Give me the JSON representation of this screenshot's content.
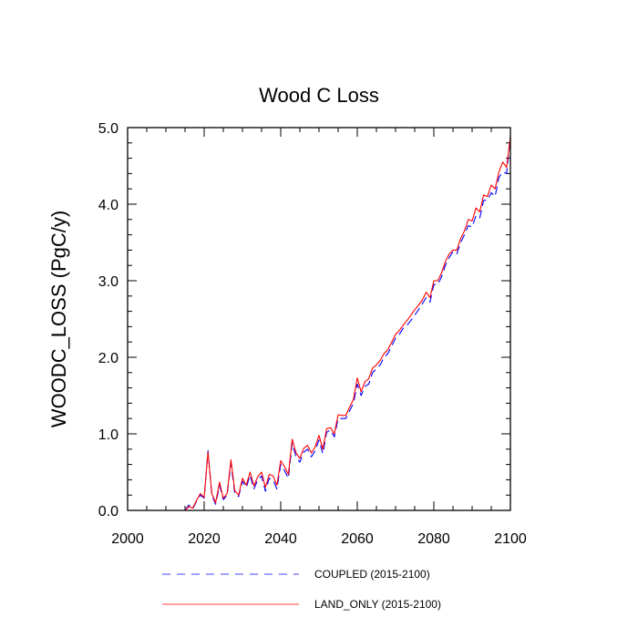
{
  "chart_data": {
    "type": "line",
    "title": "Wood C Loss",
    "xlabel": "",
    "ylabel": "WOODC_LOSS  (PgC/y)",
    "xlim": [
      2000,
      2100
    ],
    "ylim": [
      0.0,
      5.0
    ],
    "xticks": [
      2000,
      2020,
      2040,
      2060,
      2080,
      2100
    ],
    "xtick_labels": [
      "2000",
      "2020",
      "2040",
      "2060",
      "2080",
      "2100"
    ],
    "yticks": [
      0.0,
      1.0,
      2.0,
      3.0,
      4.0,
      5.0
    ],
    "ytick_labels": [
      "0.0",
      "1.0",
      "2.0",
      "3.0",
      "4.0",
      "5.0"
    ],
    "x": [
      2015,
      2016,
      2017,
      2018,
      2019,
      2020,
      2021,
      2022,
      2023,
      2024,
      2025,
      2026,
      2027,
      2028,
      2029,
      2030,
      2031,
      2032,
      2033,
      2034,
      2035,
      2036,
      2037,
      2038,
      2039,
      2040,
      2041,
      2042,
      2043,
      2044,
      2045,
      2046,
      2047,
      2048,
      2049,
      2050,
      2051,
      2052,
      2053,
      2054,
      2055,
      2056,
      2057,
      2058,
      2059,
      2060,
      2061,
      2062,
      2063,
      2064,
      2065,
      2066,
      2067,
      2068,
      2069,
      2070,
      2071,
      2072,
      2073,
      2074,
      2075,
      2076,
      2077,
      2078,
      2079,
      2080,
      2081,
      2082,
      2083,
      2084,
      2085,
      2086,
      2087,
      2088,
      2089,
      2090,
      2091,
      2092,
      2093,
      2094,
      2095,
      2096,
      2097,
      2098,
      2099,
      2100
    ],
    "series": [
      {
        "name": "COUPLED (2015-2100)",
        "color": "#0000ff",
        "style": "dashed",
        "values": [
          0.0,
          0.07,
          0.02,
          0.12,
          0.2,
          0.16,
          0.78,
          0.2,
          0.08,
          0.33,
          0.14,
          0.2,
          0.62,
          0.22,
          0.18,
          0.38,
          0.3,
          0.46,
          0.28,
          0.4,
          0.45,
          0.25,
          0.42,
          0.4,
          0.28,
          0.6,
          0.52,
          0.42,
          0.88,
          0.7,
          0.63,
          0.76,
          0.8,
          0.7,
          0.78,
          0.92,
          0.74,
          1.02,
          1.05,
          0.96,
          1.2,
          1.2,
          1.2,
          1.3,
          1.4,
          1.65,
          1.5,
          1.62,
          1.65,
          1.8,
          1.85,
          1.9,
          2.0,
          2.05,
          2.15,
          2.25,
          2.3,
          2.38,
          2.42,
          2.48,
          2.55,
          2.62,
          2.7,
          2.78,
          2.72,
          2.95,
          2.95,
          3.05,
          3.2,
          3.3,
          3.38,
          3.35,
          3.5,
          3.6,
          3.72,
          3.7,
          3.85,
          3.82,
          4.05,
          4.05,
          4.15,
          4.1,
          4.35,
          4.42,
          4.4,
          4.88
        ]
      },
      {
        "name": "LAND_ONLY (2015-2100)",
        "color": "#ff0000",
        "style": "solid",
        "values": [
          0.0,
          0.05,
          0.03,
          0.13,
          0.22,
          0.17,
          0.76,
          0.22,
          0.1,
          0.37,
          0.16,
          0.22,
          0.66,
          0.26,
          0.2,
          0.42,
          0.33,
          0.5,
          0.32,
          0.44,
          0.5,
          0.3,
          0.47,
          0.45,
          0.33,
          0.65,
          0.57,
          0.47,
          0.93,
          0.75,
          0.68,
          0.81,
          0.85,
          0.75,
          0.83,
          0.98,
          0.8,
          1.07,
          1.08,
          1.0,
          1.25,
          1.24,
          1.24,
          1.35,
          1.45,
          1.73,
          1.55,
          1.68,
          1.72,
          1.86,
          1.9,
          1.96,
          2.05,
          2.1,
          2.2,
          2.3,
          2.35,
          2.42,
          2.48,
          2.55,
          2.62,
          2.68,
          2.75,
          2.85,
          2.78,
          3.0,
          3.0,
          3.1,
          3.25,
          3.35,
          3.4,
          3.4,
          3.55,
          3.65,
          3.8,
          3.78,
          3.95,
          3.9,
          4.12,
          4.1,
          4.25,
          4.2,
          4.42,
          4.55,
          4.48,
          4.88
        ]
      }
    ],
    "legend": {
      "position": "bottom",
      "entries": [
        "COUPLED (2015-2100)",
        "LAND_ONLY (2015-2100)"
      ]
    }
  }
}
